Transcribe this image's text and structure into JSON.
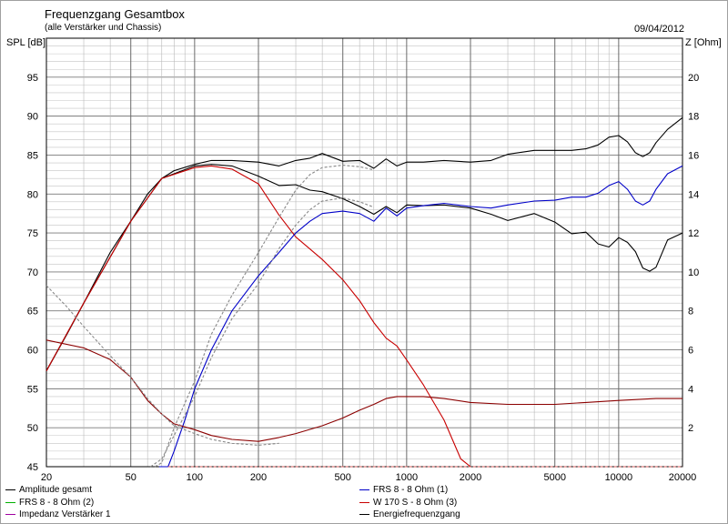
{
  "chart_data": {
    "type": "line",
    "title": "Frequenzgang Gesamtbox",
    "subtitle": "(alle Verstärker und Chassis)",
    "date": "09/04/2012",
    "ylabel_left": "SPL [dB]",
    "ylabel_right": "Z [Ohm]",
    "x_scale": "log",
    "xlim": [
      20,
      20000
    ],
    "ylim_left": [
      45,
      100
    ],
    "ylim_right": [
      0,
      22
    ],
    "x_ticks": [
      20,
      50,
      100,
      200,
      500,
      1000,
      2000,
      5000,
      10000,
      20000
    ],
    "x_tick_labels": [
      "20",
      "50",
      "100",
      "200",
      "500",
      "1000",
      "2000",
      "5000",
      "10000",
      "20000"
    ],
    "y_left_ticks": [
      45,
      50,
      55,
      60,
      65,
      70,
      75,
      80,
      85,
      90,
      95
    ],
    "y_right_ticks": [
      2,
      4,
      6,
      8,
      10,
      12,
      14,
      16,
      18,
      20
    ],
    "grid": true,
    "legend_position": "bottom",
    "legend": [
      {
        "label": "Amplitude gesamt",
        "color": "#000000"
      },
      {
        "label": "FRS 8 - 8 Ohm (2)",
        "color": "#00b000"
      },
      {
        "label": "Impedanz Verstärker 1",
        "color": "#a000a0"
      },
      {
        "label": "FRS 8 - 8 Ohm (1)",
        "color": "#0000c8"
      },
      {
        "label": "W 170 S - 8 Ohm (3)",
        "color": "#c80000"
      },
      {
        "label": "Energiefrequenzgang",
        "color": "#000000"
      }
    ],
    "series": [
      {
        "name": "Amplitude gesamt",
        "axis": "left",
        "color": "#000000",
        "style": "solid",
        "points": [
          [
            20,
            57.3
          ],
          [
            25,
            62
          ],
          [
            30,
            66
          ],
          [
            40,
            72.5
          ],
          [
            50,
            76.5
          ],
          [
            60,
            80
          ],
          [
            70,
            82
          ],
          [
            80,
            83
          ],
          [
            100,
            83.8
          ],
          [
            120,
            84.3
          ],
          [
            150,
            84.3
          ],
          [
            200,
            84.1
          ],
          [
            250,
            83.6
          ],
          [
            300,
            84.3
          ],
          [
            350,
            84.6
          ],
          [
            400,
            85.2
          ],
          [
            500,
            84.2
          ],
          [
            600,
            84.3
          ],
          [
            700,
            83.3
          ],
          [
            800,
            84.5
          ],
          [
            900,
            83.6
          ],
          [
            1000,
            84.1
          ],
          [
            1200,
            84.1
          ],
          [
            1500,
            84.3
          ],
          [
            2000,
            84.1
          ],
          [
            2500,
            84.3
          ],
          [
            3000,
            85.1
          ],
          [
            4000,
            85.6
          ],
          [
            5000,
            85.6
          ],
          [
            6000,
            85.6
          ],
          [
            7000,
            85.8
          ],
          [
            8000,
            86.3
          ],
          [
            9000,
            87.3
          ],
          [
            10000,
            87.5
          ],
          [
            11000,
            86.7
          ],
          [
            12000,
            85.3
          ],
          [
            13000,
            84.8
          ],
          [
            14000,
            85.3
          ],
          [
            15000,
            86.6
          ],
          [
            17000,
            88.3
          ],
          [
            20000,
            89.8
          ]
        ]
      },
      {
        "name": "Energiefrequenzgang",
        "axis": "left",
        "color": "#000000",
        "style": "solid",
        "points": [
          [
            20,
            57.3
          ],
          [
            30,
            66
          ],
          [
            50,
            76.5
          ],
          [
            70,
            82
          ],
          [
            100,
            83.6
          ],
          [
            120,
            83.8
          ],
          [
            150,
            83.6
          ],
          [
            200,
            82.3
          ],
          [
            250,
            81.1
          ],
          [
            300,
            81.2
          ],
          [
            350,
            80.5
          ],
          [
            400,
            80.3
          ],
          [
            500,
            79.4
          ],
          [
            600,
            78.4
          ],
          [
            700,
            77.4
          ],
          [
            800,
            78.4
          ],
          [
            900,
            77.6
          ],
          [
            1000,
            78.6
          ],
          [
            1200,
            78.5
          ],
          [
            1500,
            78.6
          ],
          [
            2000,
            78.2
          ],
          [
            2500,
            77.4
          ],
          [
            3000,
            76.6
          ],
          [
            4000,
            77.5
          ],
          [
            5000,
            76.4
          ],
          [
            6000,
            74.9
          ],
          [
            7000,
            75.1
          ],
          [
            8000,
            73.6
          ],
          [
            9000,
            73.2
          ],
          [
            10000,
            74.4
          ],
          [
            11000,
            73.8
          ],
          [
            12000,
            72.6
          ],
          [
            13000,
            70.5
          ],
          [
            14000,
            70.1
          ],
          [
            15000,
            70.6
          ],
          [
            17000,
            74.1
          ],
          [
            20000,
            75
          ]
        ]
      },
      {
        "name": "W 170 S - 8 Ohm (3)",
        "axis": "left",
        "color": "#c80000",
        "style": "solid",
        "points": [
          [
            20,
            57.3
          ],
          [
            30,
            66
          ],
          [
            50,
            76.5
          ],
          [
            70,
            82
          ],
          [
            100,
            83.4
          ],
          [
            120,
            83.6
          ],
          [
            150,
            83.2
          ],
          [
            200,
            81.3
          ],
          [
            250,
            77.3
          ],
          [
            300,
            74.5
          ],
          [
            400,
            71.6
          ],
          [
            500,
            69
          ],
          [
            600,
            66.3
          ],
          [
            700,
            63.5
          ],
          [
            800,
            61.5
          ],
          [
            900,
            60.5
          ],
          [
            1000,
            58.7
          ],
          [
            1200,
            55.5
          ],
          [
            1500,
            51
          ],
          [
            1800,
            46
          ],
          [
            2000,
            45
          ]
        ]
      },
      {
        "name": "FRS 8 - 8 Ohm (1)",
        "axis": "left",
        "color": "#0000c8",
        "style": "solid",
        "points": [
          [
            68,
            45
          ],
          [
            75,
            45
          ],
          [
            80,
            47
          ],
          [
            90,
            51
          ],
          [
            100,
            55
          ],
          [
            120,
            60
          ],
          [
            150,
            65
          ],
          [
            200,
            69.5
          ],
          [
            250,
            72.5
          ],
          [
            300,
            75
          ],
          [
            350,
            76.5
          ],
          [
            400,
            77.5
          ],
          [
            500,
            77.8
          ],
          [
            600,
            77.5
          ],
          [
            700,
            76.5
          ],
          [
            800,
            78.2
          ],
          [
            900,
            77.2
          ],
          [
            1000,
            78.2
          ],
          [
            1200,
            78.5
          ],
          [
            1500,
            78.8
          ],
          [
            2000,
            78.4
          ],
          [
            2500,
            78.2
          ],
          [
            3000,
            78.6
          ],
          [
            4000,
            79.1
          ],
          [
            5000,
            79.2
          ],
          [
            6000,
            79.6
          ],
          [
            7000,
            79.6
          ],
          [
            8000,
            80.1
          ],
          [
            9000,
            81.1
          ],
          [
            10000,
            81.6
          ],
          [
            11000,
            80.6
          ],
          [
            12000,
            79.1
          ],
          [
            13000,
            78.6
          ],
          [
            14000,
            79.1
          ],
          [
            15000,
            80.6
          ],
          [
            17000,
            82.6
          ],
          [
            20000,
            83.6
          ]
        ]
      },
      {
        "name": "Impedanz",
        "axis": "right",
        "color": "#8b0000",
        "style": "solid",
        "points": [
          [
            20,
            6.5
          ],
          [
            30,
            6.1
          ],
          [
            40,
            5.5
          ],
          [
            50,
            4.6
          ],
          [
            60,
            3.4
          ],
          [
            70,
            2.7
          ],
          [
            80,
            2.2
          ],
          [
            100,
            1.9
          ],
          [
            120,
            1.6
          ],
          [
            150,
            1.4
          ],
          [
            200,
            1.3
          ],
          [
            250,
            1.5
          ],
          [
            300,
            1.7
          ],
          [
            400,
            2.1
          ],
          [
            500,
            2.5
          ],
          [
            600,
            2.9
          ],
          [
            700,
            3.2
          ],
          [
            800,
            3.5
          ],
          [
            900,
            3.6
          ],
          [
            1000,
            3.6
          ],
          [
            1200,
            3.6
          ],
          [
            1500,
            3.5
          ],
          [
            2000,
            3.3
          ],
          [
            3000,
            3.2
          ],
          [
            5000,
            3.2
          ],
          [
            7000,
            3.3
          ],
          [
            10000,
            3.4
          ],
          [
            15000,
            3.5
          ],
          [
            20000,
            3.5
          ]
        ]
      },
      {
        "name": "Amplitude (dashed)",
        "axis": "left",
        "color": "#888888",
        "style": "dashed",
        "points": [
          [
            65,
            45
          ],
          [
            70,
            45.5
          ],
          [
            80,
            50
          ],
          [
            100,
            56
          ],
          [
            120,
            62
          ],
          [
            150,
            67
          ],
          [
            200,
            72.5
          ],
          [
            250,
            77
          ],
          [
            300,
            80.5
          ],
          [
            350,
            82.5
          ],
          [
            400,
            83.4
          ],
          [
            500,
            83.7
          ],
          [
            600,
            83.5
          ],
          [
            700,
            83.1
          ]
        ]
      },
      {
        "name": "Energiefrequenzgang (dashed)",
        "axis": "left",
        "color": "#888888",
        "style": "dashed",
        "points": [
          [
            62,
            45
          ],
          [
            70,
            46
          ],
          [
            80,
            49
          ],
          [
            100,
            54
          ],
          [
            120,
            59
          ],
          [
            150,
            64
          ],
          [
            200,
            68.5
          ],
          [
            250,
            73
          ],
          [
            300,
            76
          ],
          [
            350,
            78
          ],
          [
            400,
            79.1
          ],
          [
            500,
            79.5
          ],
          [
            600,
            79
          ],
          [
            700,
            78.3
          ]
        ]
      },
      {
        "name": "Impedanz (dashed)",
        "axis": "right",
        "color": "#888888",
        "style": "dashed",
        "points": [
          [
            20,
            9.3
          ],
          [
            25,
            8.2
          ],
          [
            30,
            7.2
          ],
          [
            40,
            5.7
          ],
          [
            50,
            4.6
          ],
          [
            60,
            3.5
          ],
          [
            70,
            2.7
          ],
          [
            80,
            2.1
          ],
          [
            100,
            1.7
          ],
          [
            120,
            1.4
          ],
          [
            150,
            1.2
          ],
          [
            200,
            1.1
          ],
          [
            250,
            1.2
          ]
        ]
      },
      {
        "name": "Baseline (dashed)",
        "axis": "left",
        "color": "#e06060",
        "style": "dashed",
        "points": [
          [
            75,
            45
          ],
          [
            20000,
            45
          ]
        ]
      }
    ]
  }
}
